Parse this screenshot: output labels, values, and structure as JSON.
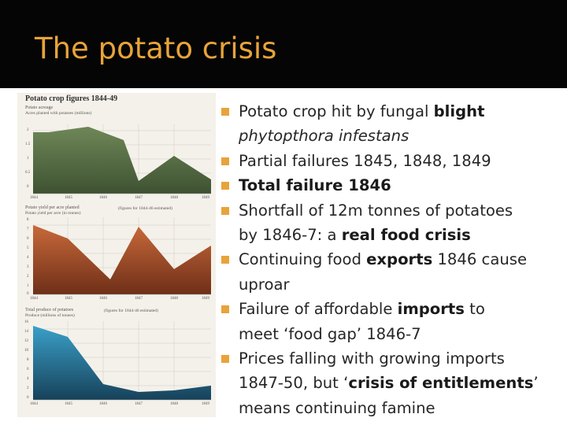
{
  "slide": {
    "title": "The potato crisis"
  },
  "figure": {
    "title": "Potato crop figures 1844-49",
    "panels": [
      {
        "label": "Potato acreage",
        "sublabel": "Acres planted with potatoes (millions)",
        "y_ticks": [
          "2",
          "1.5",
          "1",
          "0.5",
          "0"
        ],
        "x_ticks": [
          "1844",
          "1845",
          "1846",
          "1847",
          "1848",
          "1849"
        ]
      },
      {
        "label": "Potato yield per acre planted",
        "sublabel": "Potato yield per acre (in tonnes)",
        "note": "(figures for 1844-46 estimated)",
        "y_ticks": [
          "8",
          "7",
          "6",
          "5",
          "4",
          "3",
          "2",
          "1",
          "0"
        ],
        "x_ticks": [
          "1844",
          "1845",
          "1846",
          "1847",
          "1848",
          "1849"
        ]
      },
      {
        "label": "Total produce of potatoes",
        "sublabel": "Produce (millions of tonnes)",
        "note": "(figures for 1844-46 estimated)",
        "y_ticks": [
          "16",
          "14",
          "12",
          "10",
          "8",
          "6",
          "4",
          "2",
          "0"
        ],
        "x_ticks": [
          "1844",
          "1845",
          "1846",
          "1847",
          "1848",
          "1849"
        ]
      }
    ]
  },
  "bullets": [
    {
      "parts": [
        {
          "t": "Potato crop hit by fungal "
        },
        {
          "t": "blight",
          "b": true
        }
      ]
    },
    {
      "parts": [
        {
          "t": "phytopthora infestans",
          "i": true
        }
      ],
      "continuation": true
    },
    {
      "parts": [
        {
          "t": "Partial failures 1845, 1848, 1849"
        }
      ]
    },
    {
      "parts": [
        {
          "t": "Total failure 1846",
          "b": true
        }
      ]
    },
    {
      "parts": [
        {
          "t": "Shortfall of 12m tonnes of potatoes"
        }
      ]
    },
    {
      "parts": [
        {
          "t": "by 1846-7: a "
        },
        {
          "t": "real food crisis",
          "b": true
        }
      ],
      "continuation": true
    },
    {
      "parts": [
        {
          "t": "Continuing food "
        },
        {
          "t": "exports",
          "b": true
        },
        {
          "t": " 1846 cause"
        }
      ]
    },
    {
      "parts": [
        {
          "t": "uproar"
        }
      ],
      "continuation": true
    },
    {
      "parts": [
        {
          "t": "Failure of affordable "
        },
        {
          "t": "imports",
          "b": true
        },
        {
          "t": " to"
        }
      ]
    },
    {
      "parts": [
        {
          "t": "meet ‘food gap’ 1846-7"
        }
      ],
      "continuation": true
    },
    {
      "parts": [
        {
          "t": "Prices falling with growing imports"
        }
      ]
    },
    {
      "parts": [
        {
          "t": "1847-50, but ‘"
        },
        {
          "t": "crisis of entitlements",
          "b": true
        },
        {
          "t": "’"
        }
      ],
      "continuation": true
    },
    {
      "parts": [
        {
          "t": "means  continuing famine"
        }
      ],
      "continuation": true
    }
  ],
  "colors": {
    "title": "#e8a33a",
    "bullet": "#e8a33a",
    "panel1_fill": "#5d7548",
    "panel2_fill": "#b0532a",
    "panel3_fill": "#2a6f92"
  }
}
